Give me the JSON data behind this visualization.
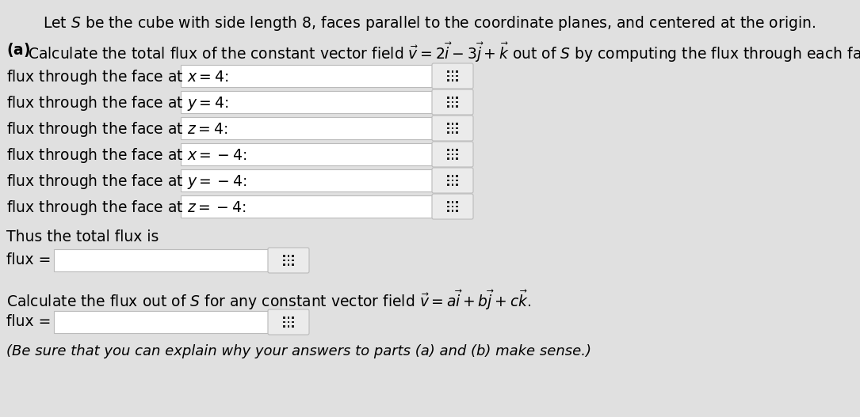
{
  "background_color": "#e0e0e0",
  "title_text": "Let $S$ be the cube with side length 8, faces parallel to the coordinate planes, and centered at the origin.",
  "part_a_intro": "(a) Calculate the total flux of the constant vector field $\\vec{v} = 2\\vec{i} - 3\\vec{j}+ \\vec{k}$ out of $S$ by computing the flux through each face separately.",
  "face_labels": [
    "flux through the face at $x = 4$:",
    "flux through the face at $y = 4$:",
    "flux through the face at $z = 4$:",
    "flux through the face at $x = -4$:",
    "flux through the face at $y = -4$:",
    "flux through the face at $z = -4$:"
  ],
  "total_flux_label": "Thus the total flux is",
  "flux_eq": "flux =",
  "part_b_text": "Calculate the flux out of $S$ for any constant vector field $\\vec{v} = a\\vec{i} + b\\vec{j} + c\\vec{k}$.",
  "italic_note": "(Be sure that you can explain why your answers to parts (a) and (b) make sense.)",
  "white_box_bg": "#ffffff",
  "white_box_border": "#bbbbbb",
  "btn_bg": "#ebebeb",
  "btn_border": "#bbbbbb",
  "grid_dot_color": "#222222",
  "text_color": "#000000",
  "font_size": 13.5,
  "small_font_size": 13
}
